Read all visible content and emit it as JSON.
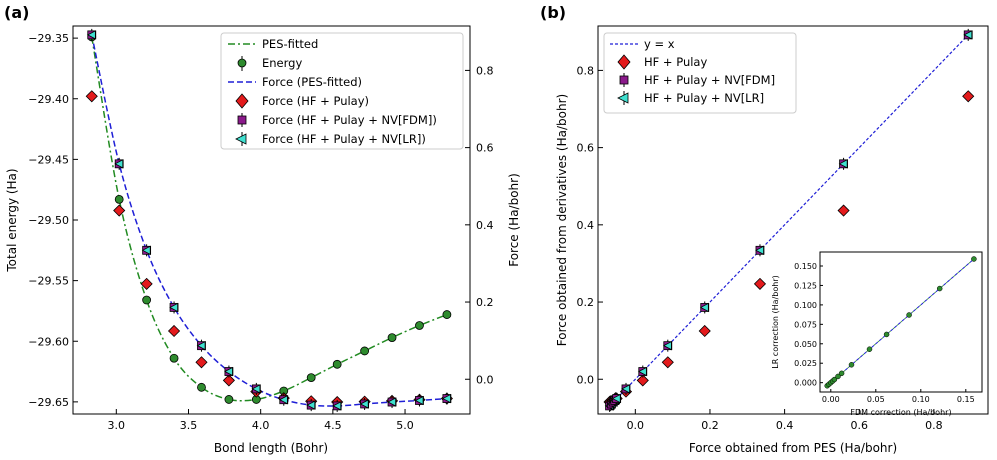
{
  "chart_data": [
    {
      "panel_label": "(a)",
      "type": "line",
      "xlabel": "Bond length (Bohr)",
      "ylabel": "Total energy (Ha)",
      "ylabel_right": "Force (Ha/bohr)",
      "xlim": [
        2.7,
        5.45
      ],
      "ylim": [
        -29.66,
        -29.34
      ],
      "ylim_right": [
        -0.09,
        0.915
      ],
      "xticks": [
        "3.0",
        "3.5",
        "4.0",
        "4.5",
        "5.0"
      ],
      "xtick_values": [
        3.0,
        3.5,
        4.0,
        4.5,
        5.0
      ],
      "yticks": [
        "−29.35",
        "−29.40",
        "−29.45",
        "−29.50",
        "−29.55",
        "−29.60",
        "−29.65"
      ],
      "ytick_values": [
        -29.35,
        -29.4,
        -29.45,
        -29.5,
        -29.55,
        -29.6,
        -29.65
      ],
      "yticks_right": [
        "0.0",
        "0.2",
        "0.4",
        "0.6",
        "0.8"
      ],
      "ytick_values_right": [
        0.0,
        0.2,
        0.4,
        0.6,
        0.8
      ],
      "legend": [
        "PES-fitted",
        "Energy",
        "Force (PES-fitted)",
        "Force (HF + Pulay)",
        "Force (HF + Pulay + NV[FDM])",
        "Force (HF + Pulay + NV[LR])"
      ],
      "bond_lengths": [
        2.83,
        3.02,
        3.21,
        3.4,
        3.59,
        3.78,
        3.97,
        4.16,
        4.35,
        4.53,
        4.72,
        4.91,
        5.1,
        5.29
      ],
      "energy": [
        -29.349,
        -29.483,
        -29.566,
        -29.614,
        -29.638,
        -29.648,
        -29.648,
        -29.641,
        -29.63,
        -29.619,
        -29.608,
        -29.597,
        -29.587,
        -29.578
      ],
      "force_hf_pulay": [
        0.733,
        0.437,
        0.247,
        0.125,
        0.044,
        -0.003,
        -0.032,
        -0.049,
        -0.057,
        -0.059,
        -0.058,
        -0.056,
        -0.053,
        -0.05
      ],
      "force_nv_fdm": [
        0.892,
        0.558,
        0.334,
        0.186,
        0.087,
        0.02,
        -0.025,
        -0.053,
        -0.067,
        -0.069,
        -0.064,
        -0.059,
        -0.055,
        -0.05
      ],
      "force_nv_lr": [
        0.892,
        0.558,
        0.334,
        0.186,
        0.087,
        0.02,
        -0.025,
        -0.053,
        -0.067,
        -0.069,
        -0.064,
        -0.059,
        -0.055,
        -0.05
      ]
    },
    {
      "panel_label": "(b)",
      "type": "scatter",
      "xlabel": "Force obtained from PES (Ha/bohr)",
      "ylabel": "Force obtained from derivatives (Ha/bohr)",
      "xlim": [
        -0.1,
        0.945
      ],
      "ylim": [
        -0.09,
        0.915
      ],
      "xticks": [
        "0.0",
        "0.2",
        "0.4",
        "0.6",
        "0.8"
      ],
      "xtick_values": [
        0.0,
        0.2,
        0.4,
        0.6,
        0.8
      ],
      "yticks": [
        "0.0",
        "0.2",
        "0.4",
        "0.6",
        "0.8"
      ],
      "ytick_values": [
        0.0,
        0.2,
        0.4,
        0.6,
        0.8
      ],
      "legend": [
        "y = x",
        "HF + Pulay",
        "HF + Pulay + NV[FDM]",
        "HF + Pulay + NV[LR]"
      ],
      "force_pes": [
        0.892,
        0.558,
        0.334,
        0.186,
        0.087,
        0.02,
        -0.025,
        -0.053,
        -0.067,
        -0.069,
        -0.064,
        -0.059,
        -0.055,
        -0.05
      ],
      "hf_pulay": [
        0.733,
        0.437,
        0.247,
        0.125,
        0.044,
        -0.003,
        -0.032,
        -0.049,
        -0.057,
        -0.059,
        -0.058,
        -0.056,
        -0.053,
        -0.05
      ],
      "nv_fdm": [
        0.892,
        0.558,
        0.334,
        0.186,
        0.087,
        0.02,
        -0.025,
        -0.053,
        -0.067,
        -0.069,
        -0.064,
        -0.059,
        -0.055,
        -0.05
      ],
      "nv_lr": [
        0.892,
        0.558,
        0.334,
        0.186,
        0.087,
        0.02,
        -0.025,
        -0.053,
        -0.067,
        -0.069,
        -0.064,
        -0.059,
        -0.055,
        -0.05
      ],
      "inset": {
        "xlabel": "FDM correction (Ha/bohr)",
        "ylabel": "LR correction (Ha/bohr)",
        "xlim": [
          -0.012,
          0.168
        ],
        "ylim": [
          -0.012,
          0.168
        ],
        "xticks": [
          "0.00",
          "0.05",
          "0.10",
          "0.15"
        ],
        "xtick_values": [
          0.0,
          0.05,
          0.1,
          0.15
        ],
        "yticks": [
          "0.000",
          "0.025",
          "0.050",
          "0.075",
          "0.100",
          "0.125",
          "0.150"
        ],
        "ytick_values": [
          0.0,
          0.025,
          0.05,
          0.075,
          0.1,
          0.125,
          0.15
        ],
        "fdm": [
          -0.004,
          -0.002,
          0.0,
          0.002,
          0.004,
          0.008,
          0.012,
          0.023,
          0.043,
          0.062,
          0.087,
          0.121,
          0.159
        ],
        "lr": [
          -0.004,
          -0.002,
          0.0,
          0.002,
          0.004,
          0.008,
          0.012,
          0.023,
          0.043,
          0.062,
          0.087,
          0.121,
          0.159
        ]
      }
    }
  ],
  "colors": {
    "pes_fitted": "#228B22",
    "energy": "#2e8b2e",
    "force_fit": "#1f1fd6",
    "hf_pulay": "#e31a1c",
    "fdm": "#8b1a8b",
    "lr": "#40e0d0"
  }
}
